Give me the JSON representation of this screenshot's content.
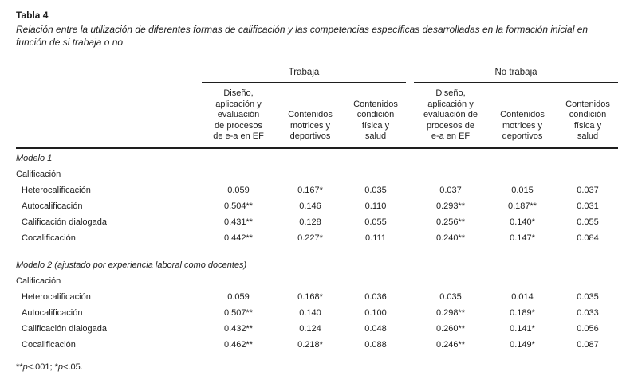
{
  "page": {
    "title": "Tabla 4",
    "caption": "Relación entre la utilización de diferentes formas de calificación y las competencias específicas desarrolladas en la formación inicial en\nfunción de si trabaja o no"
  },
  "table": {
    "groups": [
      {
        "label": "Trabaja"
      },
      {
        "label": "No trabaja"
      }
    ],
    "columns": [
      "Diseño,\naplicación y\nevaluación\nde procesos\nde e-a en EF",
      "Contenidos\nmotrices y\ndeportivos",
      "Contenidos\ncondición\nfísica y\nsalud",
      "Diseño,\naplicación y\nevaluación de\nprocesos de\ne-a en EF",
      "Contenidos\nmotrices y\ndeportivos",
      "Contenidos\ncondición\nfísica y\nsalud"
    ],
    "sections": [
      {
        "model_label": "Modelo 1",
        "subheader": "Calificación",
        "rows": [
          {
            "label": "Heterocalificación",
            "values": [
              "0.059",
              "0.167*",
              "0.035",
              "0.037",
              "0.015",
              "0.037"
            ]
          },
          {
            "label": "Autocalificación",
            "values": [
              "0.504**",
              "0.146",
              "0.110",
              "0.293**",
              "0.187**",
              "0.031"
            ]
          },
          {
            "label": "Calificación dialogada",
            "values": [
              "0.431**",
              "0.128",
              "0.055",
              "0.256**",
              "0.140*",
              "0.055"
            ]
          },
          {
            "label": "Cocalificación",
            "values": [
              "0.442**",
              "0.227*",
              "0.111",
              "0.240**",
              "0.147*",
              "0.084"
            ]
          }
        ]
      },
      {
        "model_label": "Modelo 2 (ajustado por experiencia laboral como docentes)",
        "subheader": "Calificación",
        "rows": [
          {
            "label": "Heterocalificación",
            "values": [
              "0.059",
              "0.168*",
              "0.036",
              "0.035",
              "0.014",
              "0.035"
            ]
          },
          {
            "label": "Autocalificación",
            "values": [
              "0.507**",
              "0.140",
              "0.100",
              "0.298**",
              "0.189*",
              "0.033"
            ]
          },
          {
            "label": "Calificación dialogada",
            "values": [
              "0.432**",
              "0.124",
              "0.048",
              "0.260**",
              "0.141*",
              "0.056"
            ]
          },
          {
            "label": "Cocalificación",
            "values": [
              "0.462**",
              "0.218*",
              "0.088",
              "0.246**",
              "0.149*",
              "0.087"
            ]
          }
        ]
      }
    ]
  },
  "footnote": {
    "s1": "**",
    "p1": "p",
    "s2": "<.001; *",
    "p2": "p",
    "s3": "<.05."
  }
}
